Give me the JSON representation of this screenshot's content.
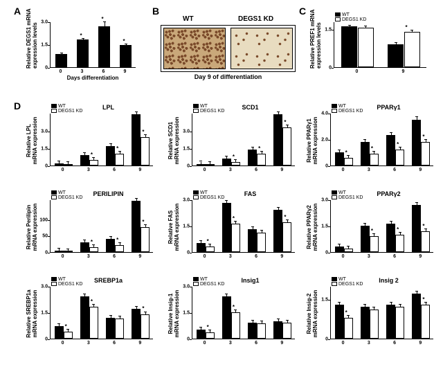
{
  "labels": {
    "A": "A",
    "B": "B",
    "C": "C",
    "D": "D"
  },
  "colors": {
    "wt": "#000000",
    "kd": "#ffffff",
    "bg": "#ffffff",
    "micro": "#c9a87a"
  },
  "legend": {
    "wt": "WT",
    "kd": "DEGS1 KD"
  },
  "panelA": {
    "ylabel": "Relative DEGS1 mRNA\nexpression levels",
    "xlabel": "Days differentiation",
    "xcats": [
      "0",
      "3",
      "6",
      "9"
    ],
    "values": [
      0.85,
      1.8,
      2.7,
      1.45
    ],
    "errors": [
      0.05,
      0.05,
      0.25,
      0.05
    ],
    "sig": [
      false,
      true,
      true,
      true
    ],
    "ymax": 3.0,
    "yticks": [
      0,
      1.5,
      3.0
    ]
  },
  "panelB": {
    "wt_label": "WT",
    "kd_label": "DEGS1 KD",
    "caption": "Day 9 of differentiation"
  },
  "panelC": {
    "ylabel": "Relative PREF1 mRNA\nexpression levels",
    "xcats": [
      "0",
      "9"
    ],
    "wt": [
      1.6,
      0.9
    ],
    "kd": [
      1.55,
      1.4
    ],
    "wterr": [
      0.05,
      0.05
    ],
    "kderr": [
      0.05,
      0.05
    ],
    "sig": [
      false,
      true
    ],
    "ymax": 1.8,
    "yticks": [
      0,
      1.5
    ]
  },
  "panelD": {
    "xlabel": "",
    "xcats": [
      "0",
      "3",
      "6",
      "9"
    ],
    "charts": [
      {
        "title": "LPL",
        "ylabel": "Relative LPL\nmRNA expression",
        "wt": [
          0.2,
          0.9,
          1.7,
          4.5
        ],
        "kd": [
          0.1,
          0.5,
          1.0,
          2.5
        ],
        "ymax": 4.6,
        "yticks": [
          0,
          1.5,
          3.0
        ],
        "sig": [
          false,
          true,
          true,
          true
        ]
      },
      {
        "title": "SCD1",
        "ylabel": "Relative SCD1\nmRNA expression",
        "wt": [
          0.15,
          0.6,
          1.4,
          4.5
        ],
        "kd": [
          0.1,
          0.3,
          1.0,
          3.3
        ],
        "ymax": 4.6,
        "yticks": [
          0,
          1.5,
          3.0
        ],
        "sig": [
          false,
          true,
          true,
          true
        ]
      },
      {
        "title": "PPARγ1",
        "ylabel": "Relative PPARγ1\nmRNA expression",
        "wt": [
          1.0,
          1.8,
          2.3,
          3.5
        ],
        "kd": [
          0.6,
          0.9,
          1.2,
          1.8
        ],
        "ymax": 4.0,
        "yticks": [
          0,
          2.0,
          4.0
        ],
        "sig": [
          true,
          true,
          true,
          true
        ]
      },
      {
        "title": "PERILIPIN",
        "ylabel": "Relative Perilipin\nmRNA expression",
        "wt": [
          4,
          30,
          40,
          155
        ],
        "kd": [
          2,
          15,
          22,
          75
        ],
        "ymax": 160,
        "yticks": [
          0,
          50,
          100
        ],
        "sig": [
          false,
          true,
          true,
          true
        ]
      },
      {
        "title": "FAS",
        "ylabel": "Relative FAS\nmRNA expression",
        "wt": [
          0.5,
          2.8,
          1.3,
          2.4
        ],
        "kd": [
          0.3,
          1.6,
          1.1,
          1.7
        ],
        "ymax": 3.0,
        "yticks": [
          0,
          1.5,
          3.0
        ],
        "sig": [
          true,
          true,
          false,
          true
        ]
      },
      {
        "title": "PPARγ2",
        "ylabel": "Relative PPARγ2\nmRNA expression",
        "wt": [
          0.3,
          1.5,
          1.6,
          2.7
        ],
        "kd": [
          0.2,
          0.9,
          1.0,
          1.2
        ],
        "ymax": 3.0,
        "yticks": [
          0,
          1.5,
          3.0
        ],
        "sig": [
          false,
          true,
          true,
          true
        ]
      },
      {
        "title": "SREBP1a",
        "ylabel": "Relative SREBP1a\nmRNA expression",
        "wt": [
          0.7,
          2.4,
          1.2,
          1.7
        ],
        "kd": [
          0.4,
          1.8,
          1.15,
          1.4
        ],
        "ymax": 3.0,
        "yticks": [
          0,
          1.5,
          3.0
        ],
        "sig": [
          true,
          true,
          false,
          true
        ]
      },
      {
        "title": "Insig1",
        "ylabel": "Relative Insig-1\nmRNA expression",
        "wt": [
          0.5,
          2.4,
          0.9,
          1.0
        ],
        "kd": [
          0.35,
          1.5,
          0.85,
          0.9
        ],
        "ymax": 3.0,
        "yticks": [
          0,
          1.5,
          3.0
        ],
        "sig": [
          true,
          true,
          false,
          false
        ]
      },
      {
        "title": "Insig 2",
        "ylabel": "Relative Insig-2\nmRNA expression",
        "wt": [
          1.3,
          1.2,
          1.3,
          1.7
        ],
        "kd": [
          0.8,
          1.1,
          1.2,
          1.3
        ],
        "ymax": 2.0,
        "yticks": [
          0,
          1.5
        ],
        "sig": [
          true,
          false,
          false,
          true
        ]
      }
    ]
  }
}
